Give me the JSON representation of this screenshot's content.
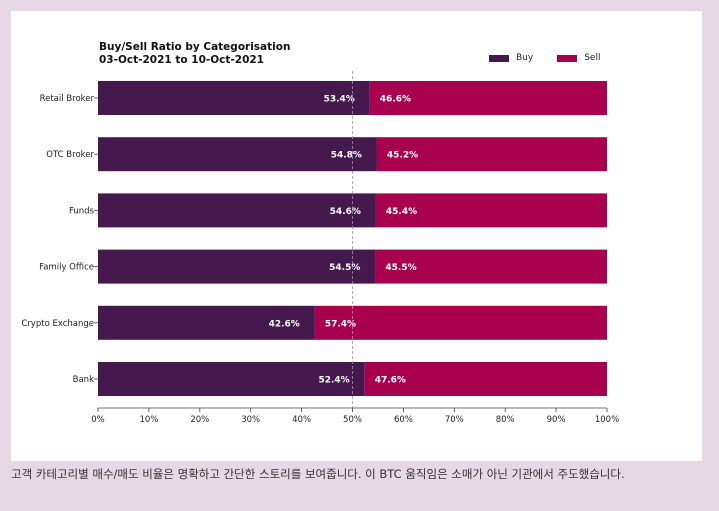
{
  "chart_data": {
    "type": "bar",
    "orientation": "horizontal",
    "stacked": true,
    "title": "Buy/Sell Ratio by Categorisation",
    "subtitle": "03-Oct-2021 to 10-Oct-2021",
    "categories": [
      "Retail Broker",
      "OTC Broker",
      "Funds",
      "Family Office",
      "Crypto Exchange",
      "Bank"
    ],
    "series": [
      {
        "name": "Buy",
        "color": "#45184e",
        "values": [
          53.4,
          54.8,
          54.6,
          54.5,
          42.6,
          52.4
        ]
      },
      {
        "name": "Sell",
        "color": "#a8004f",
        "values": [
          46.6,
          45.2,
          45.4,
          45.5,
          57.4,
          47.6
        ]
      }
    ],
    "value_labels": {
      "Buy": [
        "53.4%",
        "54.8%",
        "54.6%",
        "54.5%",
        "42.6%",
        "52.4%"
      ],
      "Sell": [
        "46.6%",
        "45.2%",
        "45.4%",
        "45.5%",
        "57.4%",
        "47.6%"
      ]
    },
    "xlim": [
      0,
      100
    ],
    "xticks": [
      0,
      10,
      20,
      30,
      40,
      50,
      60,
      70,
      80,
      90,
      100
    ],
    "xtick_labels": [
      "0%",
      "10%",
      "20%",
      "30%",
      "40%",
      "50%",
      "60%",
      "70%",
      "80%",
      "90%",
      "100%"
    ],
    "reference_line": 50,
    "legend_position": "top-right",
    "xlabel": "",
    "ylabel": ""
  },
  "caption": "고객 카테고리별 매수/매도 비율은 명확하고 간단한 스토리를 보여줍니다. 이 BTC 움직임은 소매가 아닌 기관에서 주도했습니다."
}
